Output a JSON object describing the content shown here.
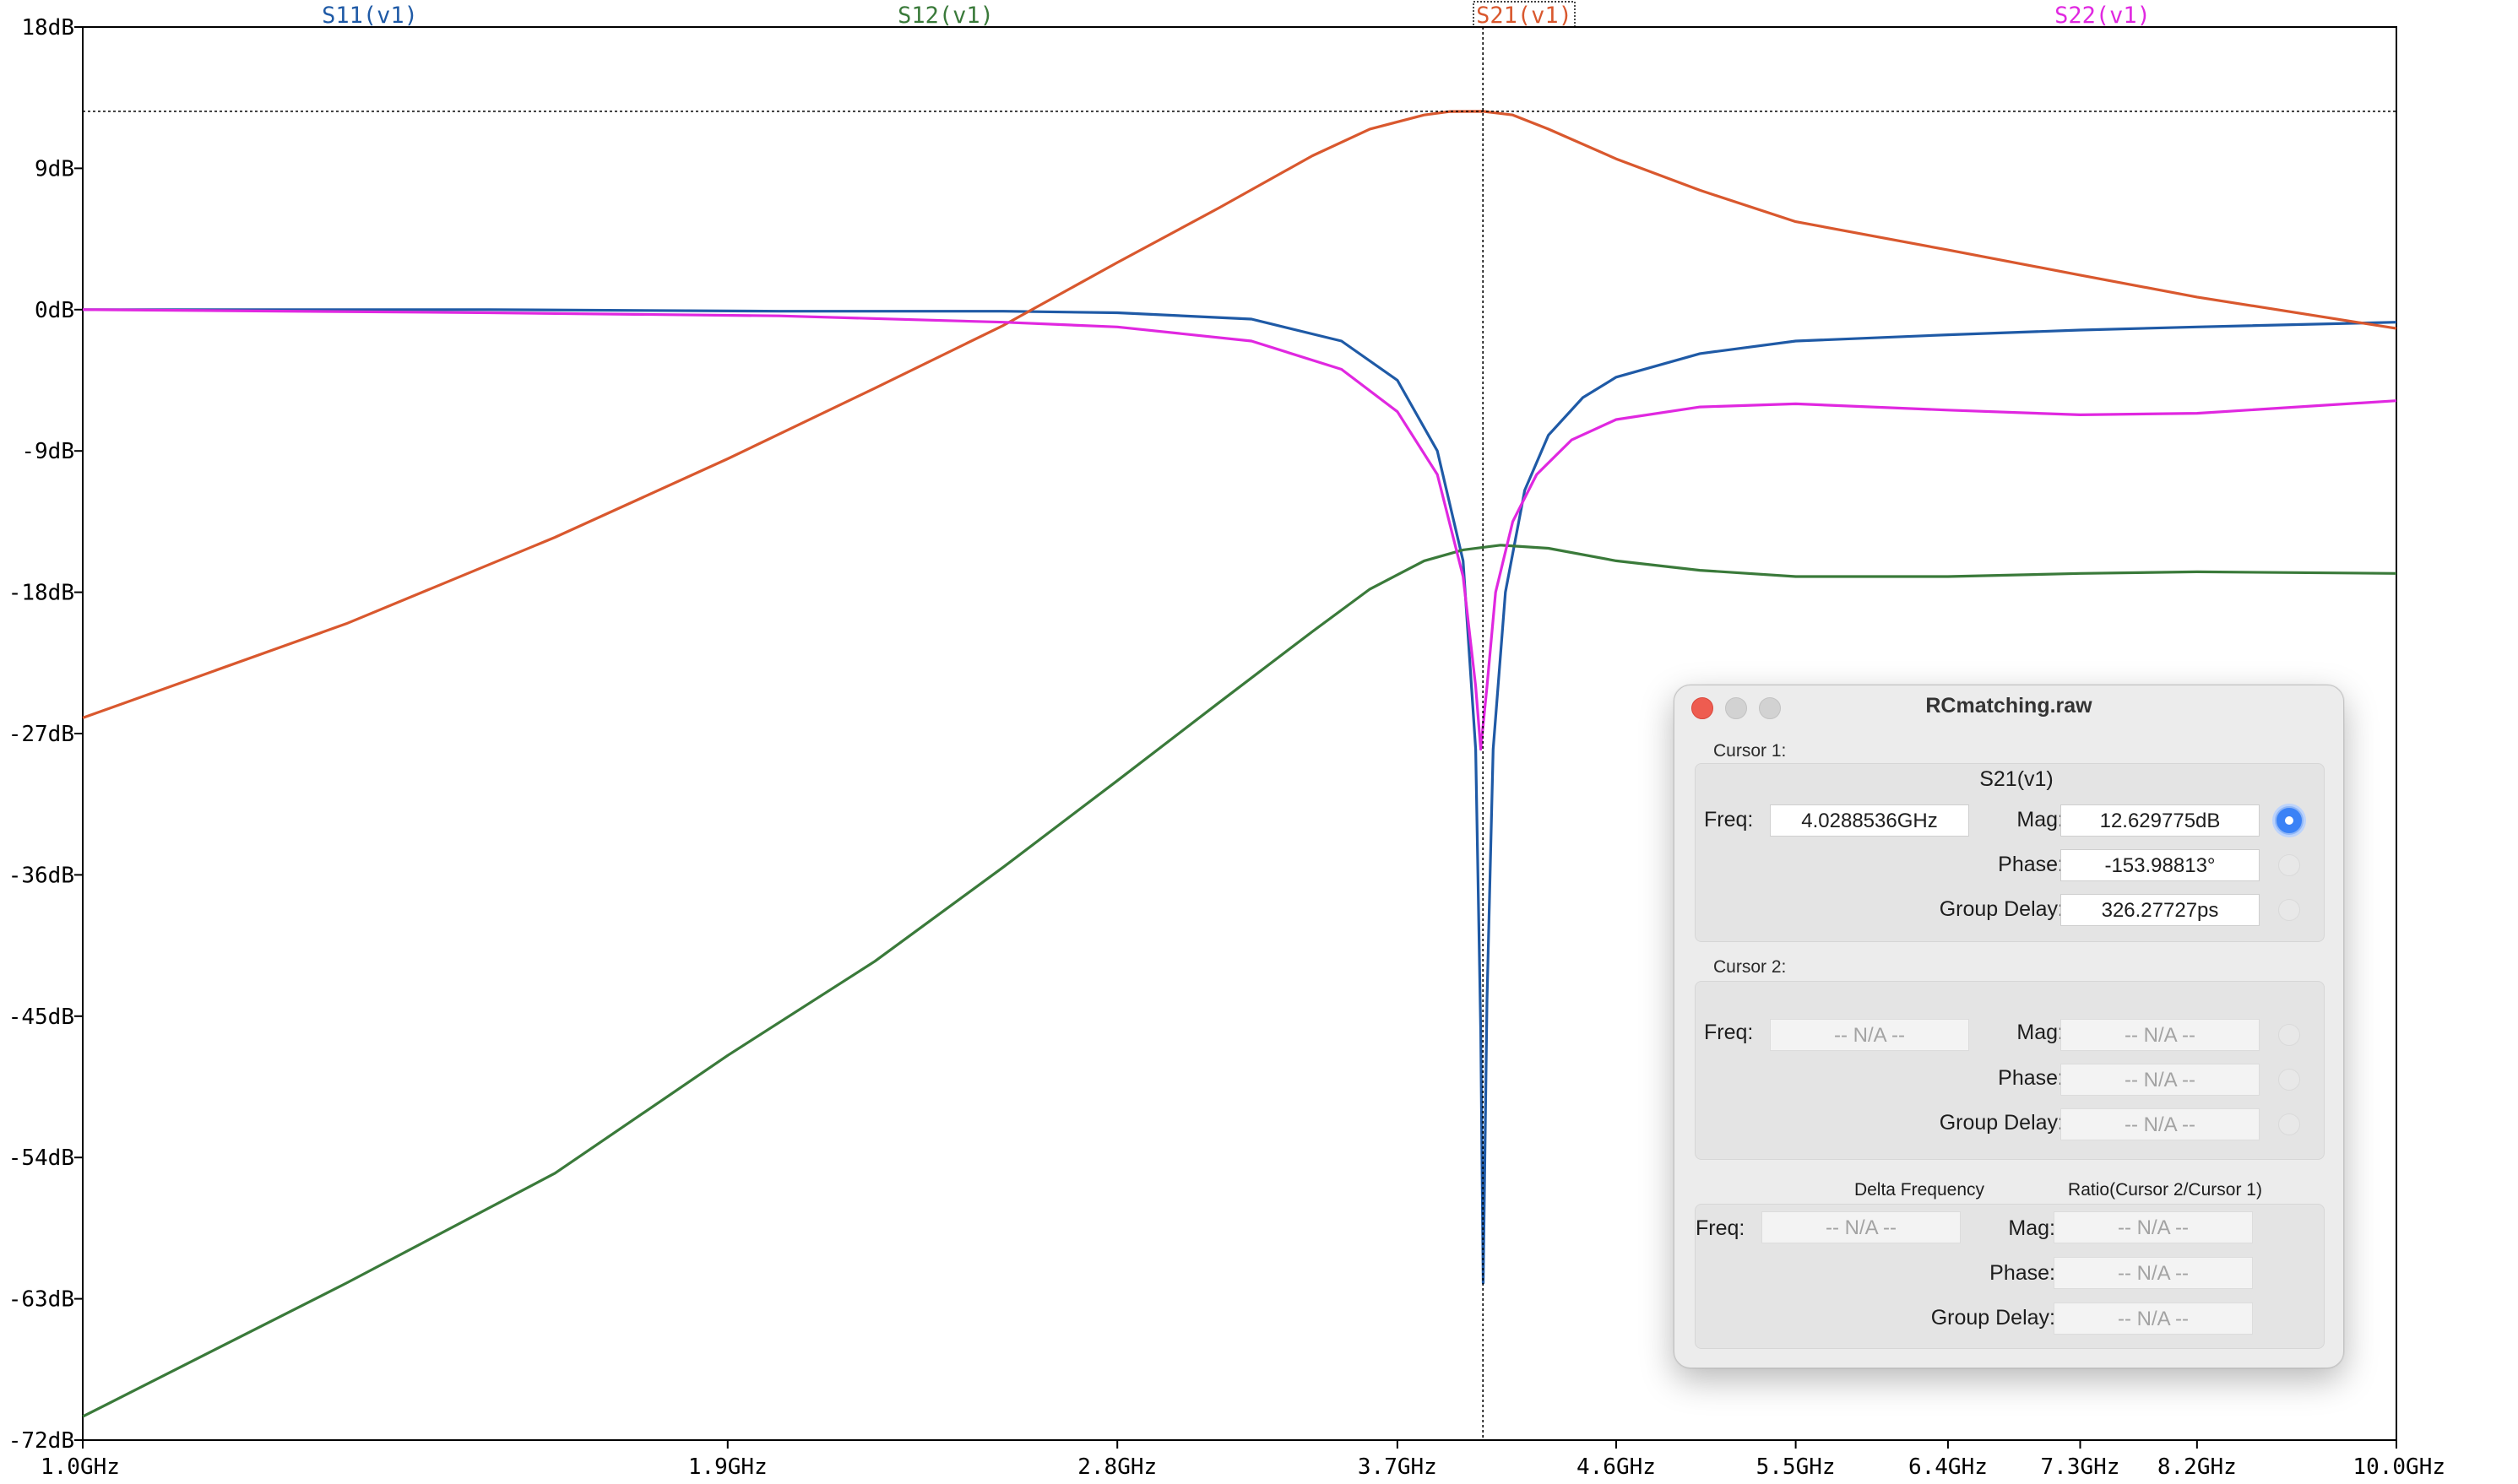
{
  "traces": [
    {
      "name": "S11(v1)",
      "color": "#1f5aa6"
    },
    {
      "name": "S12(v1)",
      "color": "#3a7a3a"
    },
    {
      "name": "S21(v1)",
      "color": "#d9582e"
    },
    {
      "name": "S22(v1)",
      "color": "#e028e0"
    }
  ],
  "chart_data": {
    "type": "line",
    "xscale": "log",
    "xlim": [
      1.0,
      10.0
    ],
    "ylim": [
      -72,
      18
    ],
    "x_ticks": [
      {
        "v": 1.0,
        "label": "1.0GHz"
      },
      {
        "v": 1.9,
        "label": "1.9GHz"
      },
      {
        "v": 2.8,
        "label": "2.8GHz"
      },
      {
        "v": 3.7,
        "label": "3.7GHz"
      },
      {
        "v": 4.6,
        "label": "4.6GHz"
      },
      {
        "v": 5.5,
        "label": "5.5GHz"
      },
      {
        "v": 6.4,
        "label": "6.4GHz"
      },
      {
        "v": 7.3,
        "label": "7.3GHz"
      },
      {
        "v": 8.2,
        "label": "8.2GHz"
      },
      {
        "v": 10.0,
        "label": "10.0GHz"
      }
    ],
    "y_ticks": [
      {
        "v": 18,
        "label": "18dB"
      },
      {
        "v": 9,
        "label": "9dB"
      },
      {
        "v": 0,
        "label": "0dB"
      },
      {
        "v": -9,
        "label": "-9dB"
      },
      {
        "v": -18,
        "label": "-18dB"
      },
      {
        "v": -27,
        "label": "-27dB"
      },
      {
        "v": -36,
        "label": "-36dB"
      },
      {
        "v": -45,
        "label": "-45dB"
      },
      {
        "v": -54,
        "label": "-54dB"
      },
      {
        "v": -63,
        "label": "-63dB"
      },
      {
        "v": -72,
        "label": "-72dB"
      }
    ],
    "cursor": {
      "x": 4.0288536,
      "y": 12.629775
    },
    "series": [
      {
        "name": "S11(v1)",
        "color": "#1f5aa6",
        "points": [
          [
            1.0,
            0.0
          ],
          [
            1.5,
            0.0
          ],
          [
            2.0,
            -0.1
          ],
          [
            2.5,
            -0.1
          ],
          [
            2.8,
            -0.2
          ],
          [
            3.2,
            -0.6
          ],
          [
            3.5,
            -2.0
          ],
          [
            3.7,
            -4.5
          ],
          [
            3.85,
            -9.0
          ],
          [
            3.95,
            -16.0
          ],
          [
            4.0,
            -28.0
          ],
          [
            4.02,
            -46.0
          ],
          [
            4.03,
            -62.0
          ],
          [
            4.045,
            -44.0
          ],
          [
            4.07,
            -28.0
          ],
          [
            4.12,
            -18.0
          ],
          [
            4.2,
            -11.5
          ],
          [
            4.3,
            -8.0
          ],
          [
            4.45,
            -5.6
          ],
          [
            4.6,
            -4.3
          ],
          [
            5.0,
            -2.8
          ],
          [
            5.5,
            -2.0
          ],
          [
            6.4,
            -1.6
          ],
          [
            7.3,
            -1.3
          ],
          [
            8.2,
            -1.1
          ],
          [
            10.0,
            -0.8
          ]
        ]
      },
      {
        "name": "S12(v1)",
        "color": "#3a7a3a",
        "points": [
          [
            1.0,
            -70.5
          ],
          [
            1.3,
            -62.0
          ],
          [
            1.6,
            -55.0
          ],
          [
            1.9,
            -47.5
          ],
          [
            2.2,
            -41.5
          ],
          [
            2.5,
            -35.5
          ],
          [
            2.8,
            -30.0
          ],
          [
            3.1,
            -25.0
          ],
          [
            3.4,
            -20.5
          ],
          [
            3.6,
            -17.8
          ],
          [
            3.8,
            -16.0
          ],
          [
            3.95,
            -15.3
          ],
          [
            4.1,
            -15.0
          ],
          [
            4.3,
            -15.2
          ],
          [
            4.6,
            -16.0
          ],
          [
            5.0,
            -16.6
          ],
          [
            5.5,
            -17.0
          ],
          [
            6.4,
            -17.0
          ],
          [
            7.3,
            -16.8
          ],
          [
            8.2,
            -16.7
          ],
          [
            10.0,
            -16.8
          ]
        ]
      },
      {
        "name": "S21(v1)",
        "color": "#d9582e",
        "points": [
          [
            1.0,
            -26.0
          ],
          [
            1.3,
            -20.0
          ],
          [
            1.6,
            -14.5
          ],
          [
            1.9,
            -9.5
          ],
          [
            2.2,
            -5.0
          ],
          [
            2.5,
            -1.0
          ],
          [
            2.8,
            3.0
          ],
          [
            3.1,
            6.5
          ],
          [
            3.4,
            9.8
          ],
          [
            3.6,
            11.5
          ],
          [
            3.8,
            12.4
          ],
          [
            3.9,
            12.62
          ],
          [
            4.0288536,
            12.63
          ],
          [
            4.15,
            12.4
          ],
          [
            4.3,
            11.5
          ],
          [
            4.6,
            9.6
          ],
          [
            5.0,
            7.6
          ],
          [
            5.5,
            5.6
          ],
          [
            6.4,
            3.8
          ],
          [
            7.3,
            2.2
          ],
          [
            8.2,
            0.8
          ],
          [
            10.0,
            -1.2
          ]
        ]
      },
      {
        "name": "S22(v1)",
        "color": "#e028e0",
        "points": [
          [
            1.0,
            0.0
          ],
          [
            1.5,
            -0.2
          ],
          [
            2.0,
            -0.4
          ],
          [
            2.5,
            -0.8
          ],
          [
            2.8,
            -1.1
          ],
          [
            3.2,
            -2.0
          ],
          [
            3.5,
            -3.8
          ],
          [
            3.7,
            -6.5
          ],
          [
            3.85,
            -10.5
          ],
          [
            3.95,
            -17.0
          ],
          [
            4.0,
            -24.0
          ],
          [
            4.02,
            -28.0
          ],
          [
            4.045,
            -24.0
          ],
          [
            4.08,
            -18.0
          ],
          [
            4.15,
            -13.5
          ],
          [
            4.25,
            -10.5
          ],
          [
            4.4,
            -8.3
          ],
          [
            4.6,
            -7.0
          ],
          [
            5.0,
            -6.2
          ],
          [
            5.5,
            -6.0
          ],
          [
            6.4,
            -6.4
          ],
          [
            7.3,
            -6.7
          ],
          [
            8.2,
            -6.6
          ],
          [
            10.0,
            -5.8
          ]
        ]
      }
    ]
  },
  "dialog": {
    "title": "RCmatching.raw",
    "cursor1_label": "Cursor 1:",
    "cursor1_trace": "S21(v1)",
    "cursor1": {
      "freq": "4.0288536GHz",
      "mag": "12.629775dB",
      "phase": "-153.98813°",
      "group_delay": "326.27727ps"
    },
    "cursor2_label": "Cursor 2:",
    "cursor2": {
      "freq": "-- N/A --",
      "mag": "-- N/A --",
      "phase": "-- N/A --",
      "group_delay": "-- N/A --"
    },
    "delta_label": "Delta Frequency",
    "ratio_label": "Ratio(Cursor 2/Cursor 1)",
    "delta": {
      "freq": "-- N/A --",
      "mag": "-- N/A --",
      "phase": "-- N/A --",
      "group_delay": "-- N/A --"
    },
    "labels": {
      "freq": "Freq:",
      "mag": "Mag:",
      "phase": "Phase:",
      "group_delay": "Group Delay:"
    }
  }
}
